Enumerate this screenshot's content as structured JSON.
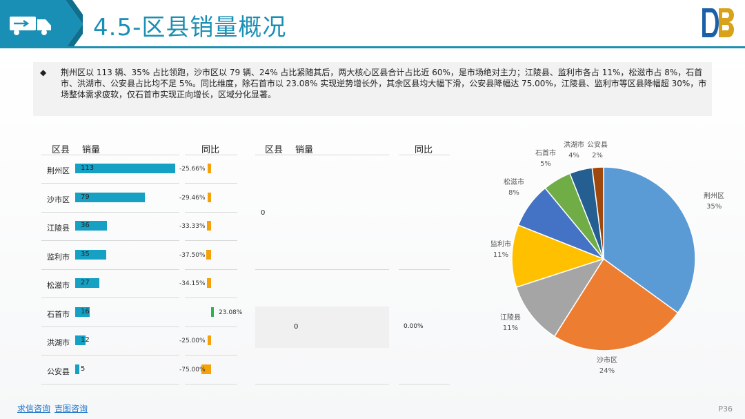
{
  "header": {
    "title": "4.5-区县销量概况"
  },
  "summary": {
    "bullet": "◆",
    "text": "荆州区以 113 辆、35% 占比领跑，沙市区以 79 辆、24% 占比紧随其后，两大核心区县合计占比近 60%，是市场绝对主力；江陵县、监利市各占 11%，松滋市占 8%，石首市、洪湖市、公安县占比均不足 5%。同比维度，除石首市以 23.08% 实现逆势增长外，其余区县均大幅下滑，公安县降幅达 75.00%，江陵县、监利市等区县降幅超 30%，市场整体需求疲软，仅石首市实现正向增长，区域分化显著。"
  },
  "table1": {
    "headers": {
      "district": "区县",
      "sales": "销量",
      "yoy": "同比"
    },
    "rows": [
      {
        "name": "荆州区",
        "sales": 113,
        "sales_label": "113",
        "yoy": -25.66,
        "yoy_label": "-25.66%"
      },
      {
        "name": "沙市区",
        "sales": 79,
        "sales_label": "79",
        "yoy": -29.46,
        "yoy_label": "-29.46%"
      },
      {
        "name": "江陵县",
        "sales": 36,
        "sales_label": "36",
        "yoy": -33.33,
        "yoy_label": "-33.33%"
      },
      {
        "name": "监利市",
        "sales": 35,
        "sales_label": "35",
        "yoy": -37.5,
        "yoy_label": "-37.50%"
      },
      {
        "name": "松滋市",
        "sales": 27,
        "sales_label": "27",
        "yoy": -34.15,
        "yoy_label": "-34.15%"
      },
      {
        "name": "石首市",
        "sales": 16,
        "sales_label": "16",
        "yoy": 23.08,
        "yoy_label": "23.08%"
      },
      {
        "name": "洪湖市",
        "sales": 12,
        "sales_label": "12",
        "yoy": -25.0,
        "yoy_label": "-25.00%"
      },
      {
        "name": "公安县",
        "sales": 5,
        "sales_label": "5",
        "yoy": -75.0,
        "yoy_label": "-75.00%"
      }
    ]
  },
  "table2": {
    "headers": {
      "district": "区县",
      "sales": "销量",
      "yoy": "同比"
    },
    "value_top": "0",
    "value_bottom": "0",
    "yoy_bottom": "0.00%"
  },
  "chart_data": {
    "type": "pie",
    "categories": [
      "荆州区",
      "沙市区",
      "江陵县",
      "监利市",
      "松滋市",
      "石首市",
      "洪湖市",
      "公安县"
    ],
    "values": [
      35,
      24,
      11,
      11,
      8,
      5,
      4,
      2
    ],
    "labels": [
      "35%",
      "24%",
      "11%",
      "11%",
      "8%",
      "5%",
      "4%",
      "2%"
    ],
    "colors": [
      "#5b9bd5",
      "#ed7d31",
      "#a5a5a5",
      "#ffc000",
      "#4472c4",
      "#70ad47",
      "#255e91",
      "#9e480e"
    ]
  },
  "colors": {
    "accent": "#1a8fb5",
    "bar": "#16a0c4",
    "yoy_neg": "#f5a20a",
    "yoy_pos": "#2eb350"
  },
  "footer": {
    "link1": "求信咨询",
    "link2": "吉图咨询",
    "page": "P36"
  }
}
